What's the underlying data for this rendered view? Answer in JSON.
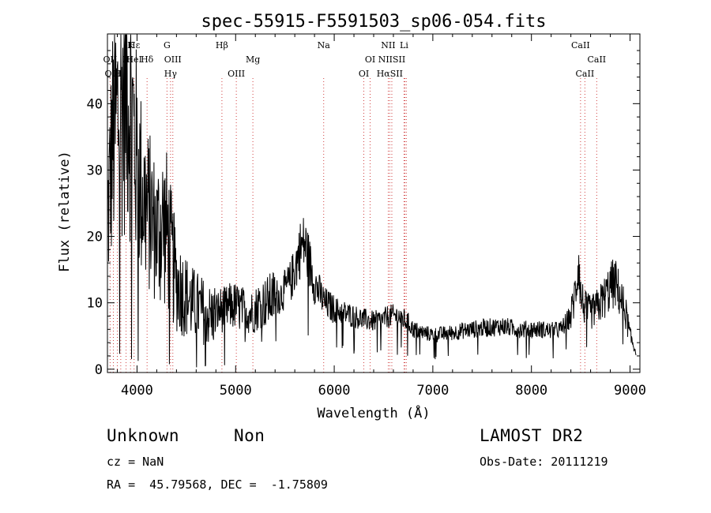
{
  "chart_data": {
    "type": "line",
    "title": "spec-55915-F5591503_sp06-054.fits",
    "xlabel": "Wavelength (Å)",
    "ylabel": "Flux (relative)",
    "xlim": [
      3700,
      9100
    ],
    "ylim": [
      -0.5,
      50.5
    ],
    "x_ticks": [
      4000,
      5000,
      6000,
      7000,
      8000,
      9000
    ],
    "x_tick_labels": [
      "4000",
      "5000",
      "6000",
      "7000",
      "8000",
      "9000"
    ],
    "y_ticks": [
      0,
      10,
      20,
      30,
      40
    ],
    "y_tick_labels": [
      "0",
      "10",
      "20",
      "30",
      "40"
    ],
    "series": [
      {
        "name": "flux",
        "x": [
          3700,
          3750,
          3800,
          3850,
          3900,
          3950,
          4000,
          4050,
          4100,
          4150,
          4200,
          4250,
          4300,
          4350,
          4400,
          4450,
          4500,
          4550,
          4600,
          4650,
          4700,
          4750,
          4800,
          4850,
          4900,
          4950,
          5000,
          5050,
          5100,
          5150,
          5200,
          5250,
          5300,
          5350,
          5400,
          5450,
          5500,
          5550,
          5600,
          5650,
          5700,
          5750,
          5800,
          5850,
          5900,
          5950,
          6000,
          6100,
          6200,
          6300,
          6400,
          6500,
          6550,
          6600,
          6650,
          6700,
          6750,
          6800,
          6900,
          7000,
          7100,
          7200,
          7300,
          7400,
          7500,
          7600,
          7700,
          7800,
          7900,
          8000,
          8100,
          8200,
          8300,
          8400,
          8450,
          8480,
          8500,
          8550,
          8600,
          8650,
          8700,
          8750,
          8800,
          8850,
          8900,
          8950,
          9000,
          9050
        ],
        "values": [
          22,
          34,
          38,
          41,
          43,
          38,
          31,
          27,
          24,
          23,
          20,
          22,
          21,
          17,
          13,
          12,
          11,
          10,
          9.5,
          9,
          8.5,
          8,
          8.5,
          9,
          9,
          9.5,
          9.5,
          9,
          9,
          8.5,
          9,
          10,
          10,
          10.5,
          11,
          11,
          12,
          13,
          15,
          18,
          19,
          16,
          13,
          11.5,
          10,
          9.5,
          9,
          8.5,
          8,
          7.5,
          7.2,
          7.5,
          8,
          8,
          8,
          7.5,
          7,
          6,
          5.5,
          5.2,
          5.3,
          5.5,
          5.8,
          6,
          6.2,
          6.3,
          6.5,
          6.2,
          6,
          6,
          6,
          5.8,
          6,
          8,
          12,
          17,
          11,
          9,
          8.5,
          9,
          10,
          11,
          12.5,
          13,
          11,
          9,
          5,
          3
        ]
      }
    ],
    "line_annotations": [
      {
        "label": "Hε",
        "wavelength": 3970,
        "row": 0
      },
      {
        "label": "K",
        "wavelength": 3934,
        "row": 0
      },
      {
        "label": "G",
        "wavelength": 4304,
        "row": 0
      },
      {
        "label": "Hβ",
        "wavelength": 4861,
        "row": 0
      },
      {
        "label": "Na",
        "wavelength": 5893,
        "row": 0
      },
      {
        "label": "NII",
        "wavelength": 6548,
        "row": 0
      },
      {
        "label": "Li",
        "wavelength": 6708,
        "row": 0
      },
      {
        "label": "CaII",
        "wavelength": 8498,
        "row": 0
      },
      {
        "label": "OII",
        "wavelength": 3727,
        "row": 1
      },
      {
        "label": "H",
        "wavelength": 3889,
        "row": 1
      },
      {
        "label": "HeI",
        "wavelength": 3970,
        "row": 1
      },
      {
        "label": "Hδ",
        "wavelength": 4102,
        "row": 1
      },
      {
        "label": "OIII",
        "wavelength": 4363,
        "row": 1
      },
      {
        "label": "Mg",
        "wavelength": 5175,
        "row": 1
      },
      {
        "label": "OI",
        "wavelength": 6364,
        "row": 1
      },
      {
        "label": "NIISII",
        "wavelength": 6584,
        "row": 1
      },
      {
        "label": "CaII",
        "wavelength": 8662,
        "row": 1
      },
      {
        "label": "OIII",
        "wavelength": 3760,
        "row": 2
      },
      {
        "label": "H",
        "wavelength": 3800,
        "row": 2
      },
      {
        "label": "Hγ",
        "wavelength": 4340,
        "row": 2
      },
      {
        "label": "OIII",
        "wavelength": 5007,
        "row": 2
      },
      {
        "label": "OI",
        "wavelength": 6300,
        "row": 2
      },
      {
        "label": "HαSII",
        "wavelength": 6563,
        "row": 2
      },
      {
        "label": "CaII",
        "wavelength": 8542,
        "row": 2
      }
    ],
    "marker_lines": [
      3727,
      3760,
      3800,
      3835,
      3889,
      3934,
      3970,
      4102,
      4304,
      4340,
      4363,
      4861,
      5007,
      5175,
      5893,
      6300,
      6364,
      6548,
      6563,
      6584,
      6708,
      6717,
      6731,
      8498,
      8542,
      8662
    ]
  },
  "info": {
    "object_class": "Unknown",
    "subclass": "Non",
    "redshift_line": "cz = NaN",
    "coords_line": "RA =  45.79568, DEC =  -1.75809",
    "survey": "LAMOST DR2",
    "obs_date_line": "Obs-Date: 20111219"
  }
}
